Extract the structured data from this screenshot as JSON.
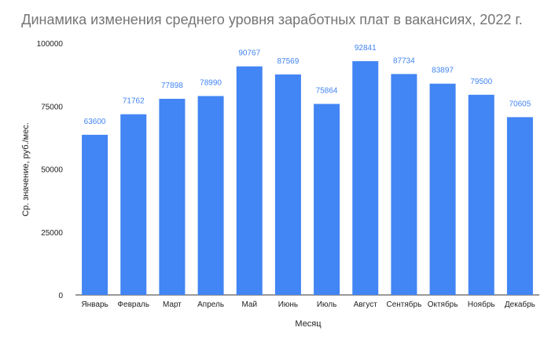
{
  "chart_data": {
    "type": "bar",
    "title": "Динамика изменения среднего уровня заработных плат в вакансиях, 2022 г.",
    "xlabel": "Месяц",
    "ylabel": "Ср. значение, руб./мес.",
    "categories": [
      "Январь",
      "Февраль",
      "Март",
      "Апрель",
      "Май",
      "Июнь",
      "Июль",
      "Август",
      "Сентябрь",
      "Октябрь",
      "Ноябрь",
      "Декабрь"
    ],
    "values": [
      63600,
      71762,
      77898,
      78990,
      90767,
      87569,
      75864,
      92841,
      87734,
      83897,
      79500,
      70605
    ],
    "ylim": [
      0,
      100000
    ],
    "yticks": [
      0,
      25000,
      50000,
      75000,
      100000
    ],
    "grid": false,
    "legend": "none",
    "bar_color": "#4285f4",
    "label_color": "#4285f4"
  }
}
